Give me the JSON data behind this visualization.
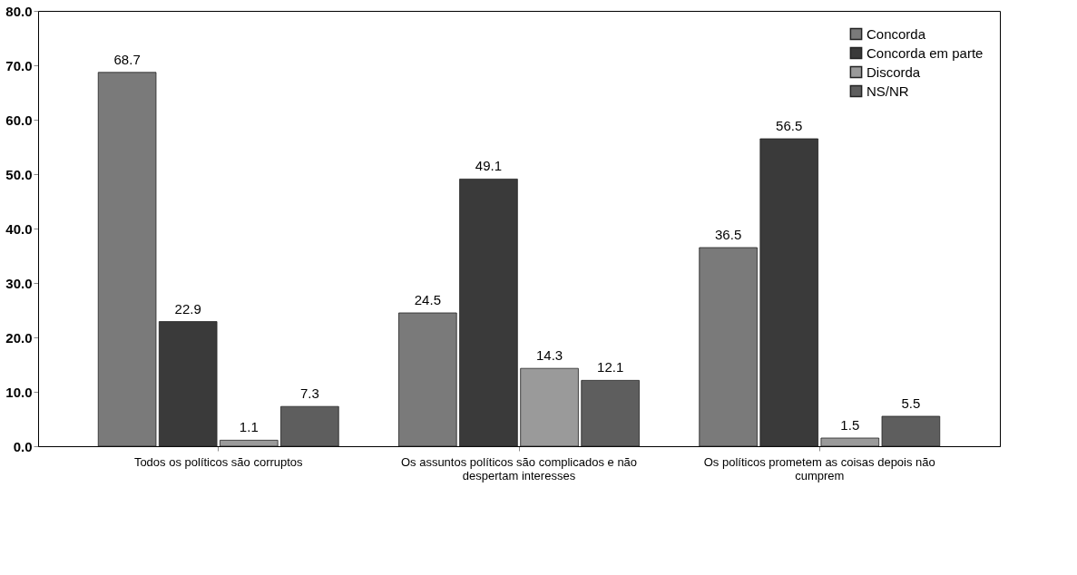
{
  "chart_data": {
    "type": "bar",
    "categories": [
      "Todos os políticos são corruptos",
      "Os assuntos políticos são complicados e não despertam interesses",
      "Os políticos prometem as coisas depois não cumprem"
    ],
    "series": [
      {
        "name": "Concorda",
        "color": "#7a7a7a",
        "values": [
          68.7,
          24.5,
          36.5
        ]
      },
      {
        "name": "Concorda em parte",
        "color": "#3a3a3a",
        "values": [
          22.9,
          49.1,
          56.5
        ]
      },
      {
        "name": "Discorda",
        "color": "#9a9a9a",
        "values": [
          1.1,
          14.3,
          1.5
        ]
      },
      {
        "name": "NS/NR",
        "color": "#5e5e5e",
        "values": [
          7.3,
          12.1,
          5.5
        ]
      }
    ],
    "ylim": [
      0,
      80
    ],
    "yticks": [
      {
        "value": 0,
        "label": "0.0"
      },
      {
        "value": 10,
        "label": "10.0"
      },
      {
        "value": 20,
        "label": "20.0"
      },
      {
        "value": 30,
        "label": "30.0"
      },
      {
        "value": 40,
        "label": "40.0"
      },
      {
        "value": 50,
        "label": "50.0"
      },
      {
        "value": 60,
        "label": "60.0"
      },
      {
        "value": 70,
        "label": "70.0"
      },
      {
        "value": 80,
        "label": "80.0"
      }
    ],
    "data_labels": true,
    "legend": "top right",
    "grid": false
  }
}
